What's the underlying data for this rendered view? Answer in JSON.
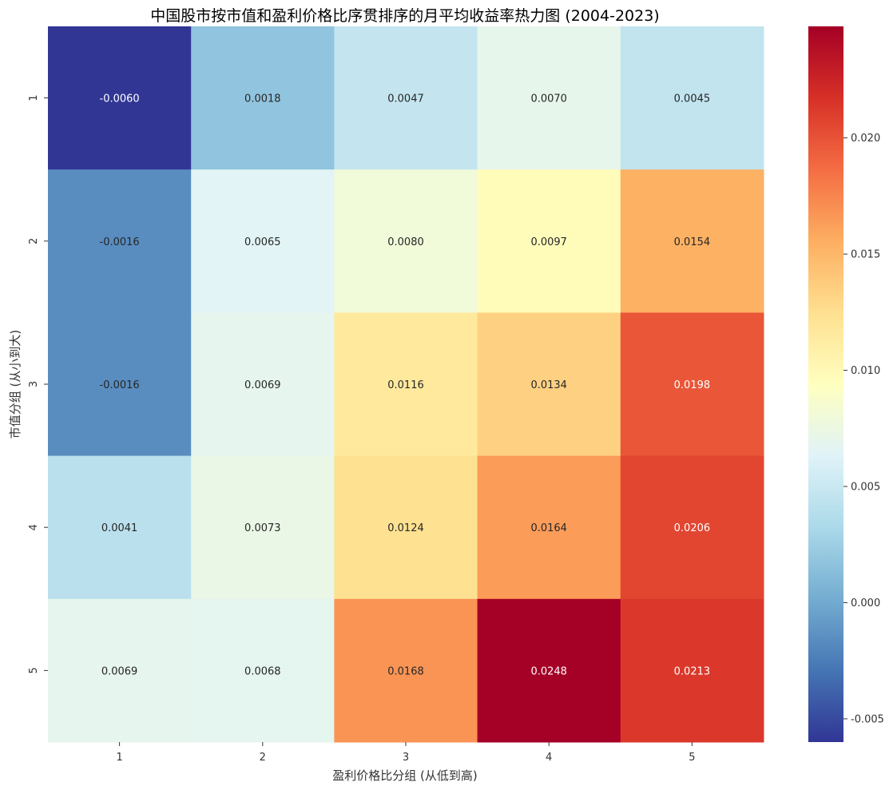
{
  "chart_data": {
    "type": "heatmap",
    "title": "中国股市按市值和盈利价格比序贯排序的月平均收益率热力图 (2004-2023)",
    "xlabel": "盈利价格比分组 (从低到高)",
    "ylabel": "市值分组 (从小到大)",
    "x_categories": [
      "1",
      "2",
      "3",
      "4",
      "5"
    ],
    "y_categories": [
      "1",
      "2",
      "3",
      "4",
      "5"
    ],
    "values": [
      [
        -0.006,
        0.0018,
        0.0047,
        0.007,
        0.0045
      ],
      [
        -0.0016,
        0.0065,
        0.008,
        0.0097,
        0.0154
      ],
      [
        -0.0016,
        0.0069,
        0.0116,
        0.0134,
        0.0198
      ],
      [
        0.0041,
        0.0073,
        0.0124,
        0.0164,
        0.0206
      ],
      [
        0.0069,
        0.0068,
        0.0168,
        0.0248,
        0.0213
      ]
    ],
    "value_labels": [
      [
        "-0.0060",
        "0.0018",
        "0.0047",
        "0.0070",
        "0.0045"
      ],
      [
        "-0.0016",
        "0.0065",
        "0.0080",
        "0.0097",
        "0.0154"
      ],
      [
        "-0.0016",
        "0.0069",
        "0.0116",
        "0.0134",
        "0.0198"
      ],
      [
        "0.0041",
        "0.0073",
        "0.0124",
        "0.0164",
        "0.0206"
      ],
      [
        "0.0069",
        "0.0068",
        "0.0168",
        "0.0248",
        "0.0213"
      ]
    ],
    "colormap": "RdYlBu_r",
    "colormap_stops": [
      "#313695",
      "#4575b4",
      "#74add1",
      "#abd9e9",
      "#e0f3f8",
      "#ffffbf",
      "#fee090",
      "#fdae61",
      "#f46d43",
      "#d73027",
      "#a50026"
    ],
    "color_range": [
      -0.006,
      0.0248
    ],
    "colorbar_ticks": [
      -0.005,
      0.0,
      0.005,
      0.01,
      0.015,
      0.02
    ],
    "colorbar_tick_labels": [
      "-0.005",
      "0.000",
      "0.005",
      "0.010",
      "0.015",
      "0.020"
    ],
    "grid": false,
    "legend": "colorbar-right"
  }
}
